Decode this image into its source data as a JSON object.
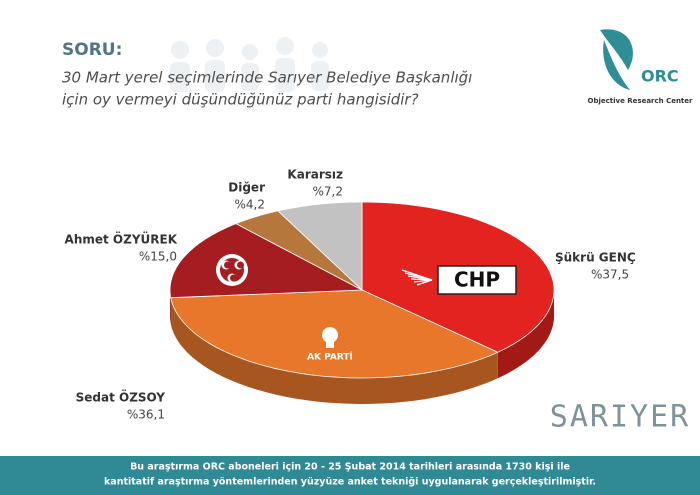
{
  "chart_data": {
    "type": "pie3d",
    "title": "SORU:",
    "subtitle": [
      "30 Mart yerel seçimlerinde Sarıyer Belediye Başkanlığı",
      "için oy vermeyi düşündüğünüz parti hangisidir?"
    ],
    "categories": [
      "Şükrü GENÇ",
      "Sedat ÖZSOY",
      "Ahmet ÖZYÜREK",
      "Diğer",
      "Kararsız"
    ],
    "values": [
      37.5,
      36.1,
      15.0,
      4.2,
      7.2
    ],
    "value_labels": [
      "%37,5",
      "%36,1",
      "%15,0",
      "%4,2",
      "%7,2"
    ],
    "colors": [
      "#e3231f",
      "#e8772b",
      "#a51d20",
      "#b5773b",
      "#c2c2c2"
    ],
    "party_logos": [
      "CHP",
      "AK PARTİ"
    ],
    "logo": {
      "name": "ORC",
      "tagline": "Objective Research Center"
    },
    "location": "SARIYER",
    "footer": [
      "Bu araştırma ORC aboneleri için 20 - 25 Şubat 2014 tarihleri arasında 1730 kişi ile",
      "kantitatif araştırma yöntemlerinden yüzyüze anket tekniği  uygulanarak gerçekleştirilmiştir."
    ]
  }
}
